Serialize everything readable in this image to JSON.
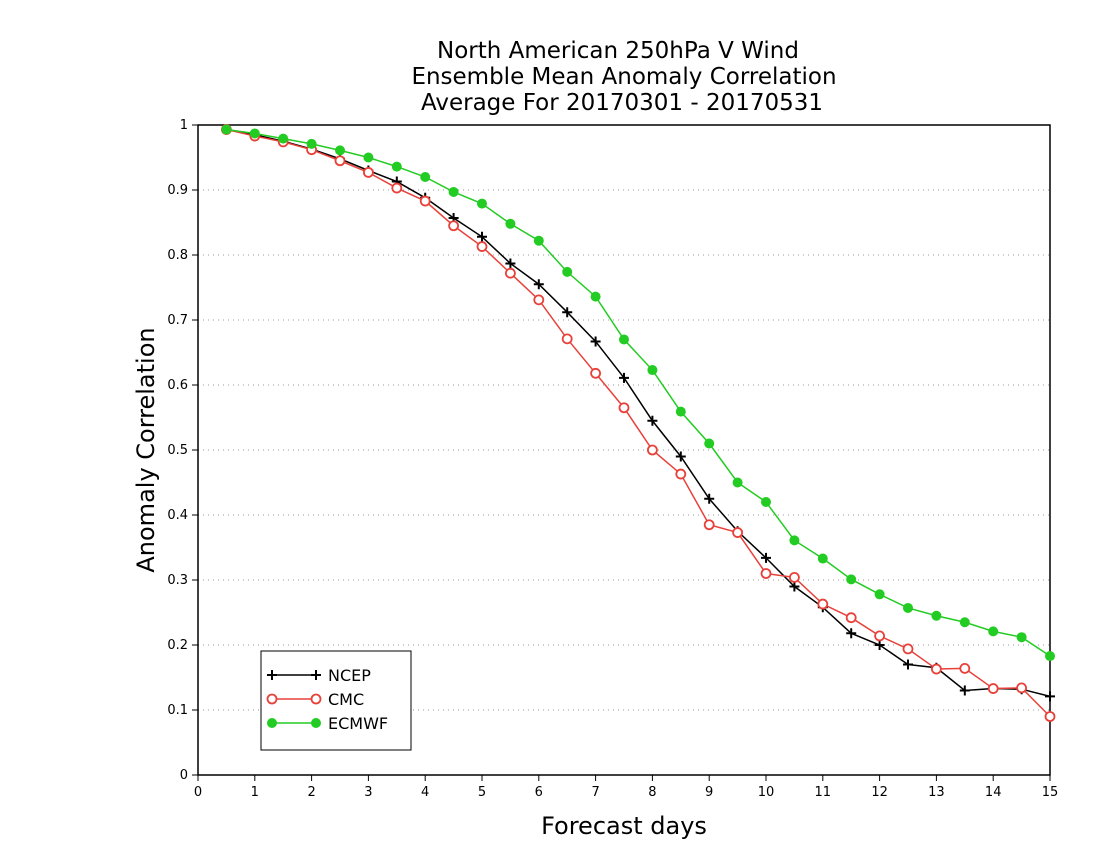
{
  "chart_data": {
    "type": "line",
    "title_lines": [
      "North American 250hPa V Wind",
      "Ensemble Mean Anomaly Correlation",
      "Average For 20170301 - 20170531"
    ],
    "xlabel": "Forecast days",
    "ylabel": "Anomaly Correlation",
    "xlim": [
      0,
      15
    ],
    "ylim": [
      0,
      1
    ],
    "x_ticks": [
      "0",
      "1",
      "2",
      "3",
      "4",
      "5",
      "6",
      "7",
      "8",
      "9",
      "10",
      "11",
      "12",
      "13",
      "14",
      "15"
    ],
    "y_ticks": [
      "0",
      "0.1",
      "0.2",
      "0.3",
      "0.4",
      "0.5",
      "0.6",
      "0.7",
      "0.8",
      "0.9",
      "1"
    ],
    "grid": "horizontal dotted",
    "legend_position": "bottom-left",
    "x": [
      0.5,
      1,
      1.5,
      2,
      2.5,
      3,
      3.5,
      4,
      4.5,
      5,
      5.5,
      6,
      6.5,
      7,
      7.5,
      8,
      8.5,
      9,
      9.5,
      10,
      10.5,
      11,
      11.5,
      12,
      12.5,
      13,
      13.5,
      14,
      14.5,
      15
    ],
    "series": [
      {
        "name": "NCEP",
        "color": "#000000",
        "marker": "plus",
        "values": [
          0.993,
          0.985,
          0.975,
          0.963,
          0.948,
          0.93,
          0.913,
          0.888,
          0.857,
          0.828,
          0.787,
          0.755,
          0.712,
          0.667,
          0.611,
          0.545,
          0.49,
          0.425,
          0.375,
          0.334,
          0.29,
          0.258,
          0.218,
          0.2,
          0.17,
          0.165,
          0.13,
          0.133,
          0.132,
          0.121
        ]
      },
      {
        "name": "CMC",
        "color": "#e8413a",
        "marker": "open-circle",
        "values": [
          0.993,
          0.983,
          0.974,
          0.962,
          0.945,
          0.927,
          0.903,
          0.883,
          0.845,
          0.813,
          0.772,
          0.731,
          0.671,
          0.618,
          0.565,
          0.5,
          0.463,
          0.385,
          0.373,
          0.31,
          0.304,
          0.263,
          0.242,
          0.214,
          0.194,
          0.163,
          0.164,
          0.133,
          0.134,
          0.09
        ]
      },
      {
        "name": "ECMWF",
        "color": "#22cc22",
        "marker": "filled-circle",
        "values": [
          0.993,
          0.987,
          0.979,
          0.971,
          0.961,
          0.95,
          0.936,
          0.92,
          0.897,
          0.879,
          0.848,
          0.822,
          0.774,
          0.736,
          0.67,
          0.623,
          0.559,
          0.51,
          0.45,
          0.42,
          0.361,
          0.333,
          0.301,
          0.278,
          0.257,
          0.245,
          0.235,
          0.221,
          0.212,
          0.183
        ]
      }
    ]
  }
}
